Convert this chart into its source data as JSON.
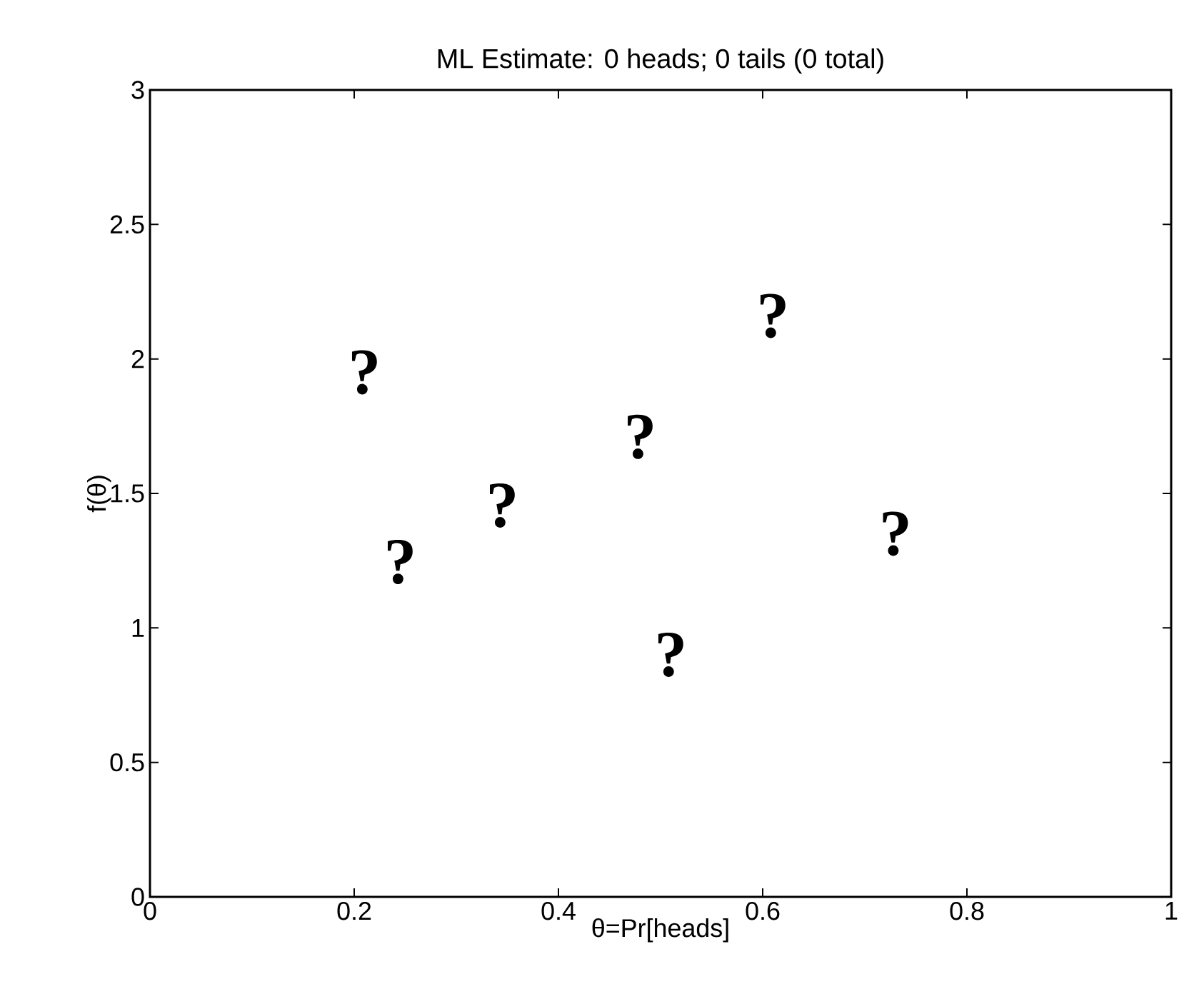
{
  "chart_data": {
    "type": "scatter",
    "title": "ML Estimate: 0 heads; 0 tails (0 total)",
    "xlabel": "θ=Pr[heads]",
    "ylabel": "f(θ)",
    "xlim": [
      0,
      1
    ],
    "ylim": [
      0,
      3
    ],
    "xticks": [
      0,
      0.2,
      0.4,
      0.6,
      0.8,
      1
    ],
    "yticks": [
      0,
      0.5,
      1,
      1.5,
      2,
      2.5,
      3
    ],
    "grid": false,
    "annotations": [
      "?",
      "?",
      "?",
      "?",
      "?",
      "?",
      "?"
    ]
  }
}
